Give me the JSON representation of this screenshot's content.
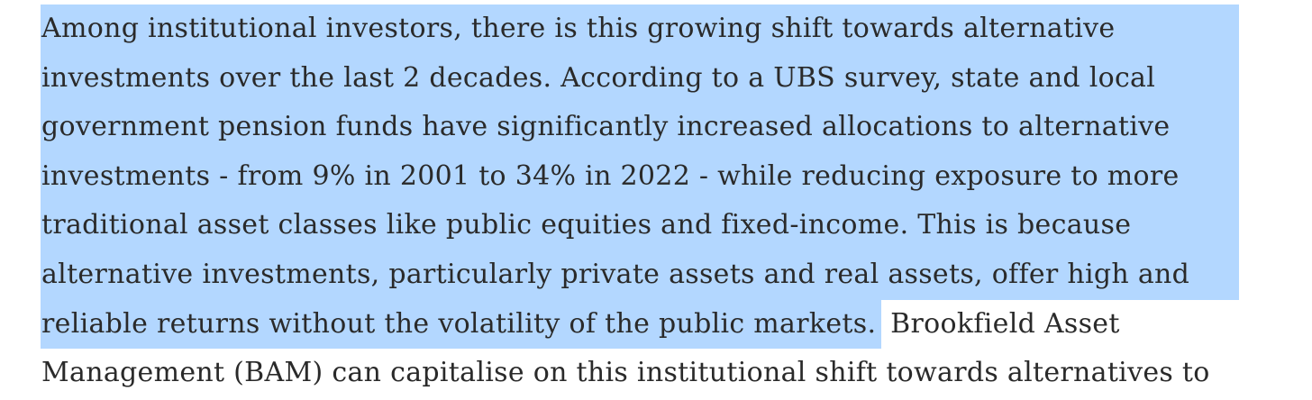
{
  "paragraph": {
    "selected_lines": [
      "Among institutional investors, there is this growing shift towards alternative",
      "investments over the last 2 decades. According to a UBS survey, state and local",
      "government pension funds have significantly increased allocations to alternative",
      "investments - from 9% in 2001 to 34% in 2022 - while reducing exposure to more",
      "traditional asset classes like public equities and fixed-income. This is because",
      "alternative investments, particularly private assets and real assets, offer high and"
    ],
    "partial_line_selected": "reliable returns without the volatility of the public markets.",
    "partial_line_rest": " Brookfield Asset",
    "last_line": "Management (BAM) can capitalise on this institutional shift towards alternatives to"
  },
  "colors": {
    "selection_highlight": "#b3d7ff",
    "text": "#2a2a2a",
    "background": "#ffffff"
  }
}
